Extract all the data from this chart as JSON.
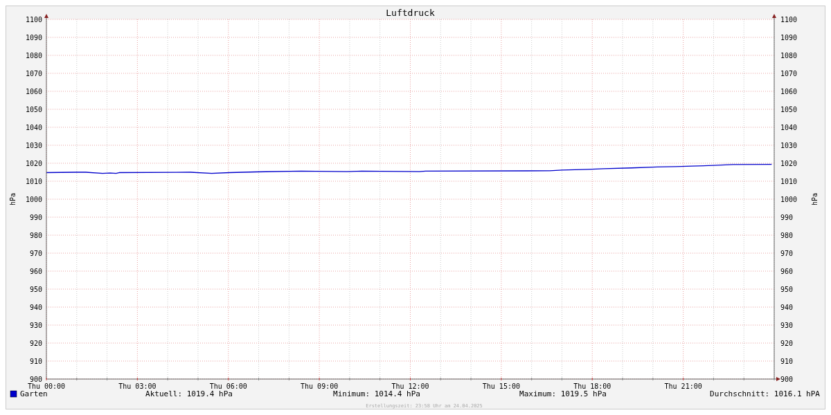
{
  "chart_data": {
    "type": "line",
    "title": "Luftdruck",
    "ylabel": "hPa",
    "y2label": "hPa",
    "xlim": [
      "2025-04-24T00:00",
      "2025-04-25T00:00"
    ],
    "xticks": [
      {
        "value": "2025-04-24T00:00",
        "label": "Thu 00:00"
      },
      {
        "value": "2025-04-24T01:00",
        "label": null
      },
      {
        "value": "2025-04-24T02:00",
        "label": null
      },
      {
        "value": "2025-04-24T03:00",
        "label": "Thu 03:00"
      },
      {
        "value": "2025-04-24T04:00",
        "label": null
      },
      {
        "value": "2025-04-24T05:00",
        "label": null
      },
      {
        "value": "2025-04-24T06:00",
        "label": "Thu 06:00"
      },
      {
        "value": "2025-04-24T07:00",
        "label": null
      },
      {
        "value": "2025-04-24T08:00",
        "label": null
      },
      {
        "value": "2025-04-24T09:00",
        "label": "Thu 09:00"
      },
      {
        "value": "2025-04-24T10:00",
        "label": null
      },
      {
        "value": "2025-04-24T11:00",
        "label": null
      },
      {
        "value": "2025-04-24T12:00",
        "label": "Thu 12:00"
      },
      {
        "value": "2025-04-24T13:00",
        "label": null
      },
      {
        "value": "2025-04-24T14:00",
        "label": null
      },
      {
        "value": "2025-04-24T15:00",
        "label": "Thu 15:00"
      },
      {
        "value": "2025-04-24T16:00",
        "label": null
      },
      {
        "value": "2025-04-24T17:00",
        "label": null
      },
      {
        "value": "2025-04-24T18:00",
        "label": "Thu 18:00"
      },
      {
        "value": "2025-04-24T19:00",
        "label": null
      },
      {
        "value": "2025-04-24T20:00",
        "label": null
      },
      {
        "value": "2025-04-24T21:00",
        "label": "Thu 21:00"
      },
      {
        "value": "2025-04-24T22:00",
        "label": null
      },
      {
        "value": "2025-04-24T23:00",
        "label": null
      },
      {
        "value": "2025-04-25T00:00",
        "label": null
      }
    ],
    "ylim": [
      900,
      1100
    ],
    "yticks": [
      900,
      910,
      920,
      930,
      940,
      950,
      960,
      970,
      980,
      990,
      1000,
      1010,
      1020,
      1030,
      1040,
      1050,
      1060,
      1070,
      1080,
      1090,
      1100
    ],
    "y2lim": [
      900,
      1100
    ],
    "y2ticks": [
      900,
      910,
      920,
      930,
      940,
      950,
      960,
      970,
      980,
      990,
      1000,
      1010,
      1020,
      1030,
      1040,
      1050,
      1060,
      1070,
      1080,
      1090,
      1100
    ],
    "grid": true,
    "legend": "bottom left",
    "line_style": "solid",
    "marker": "none",
    "series": [
      {
        "name": "Garten",
        "color": "#0000cc",
        "x": [
          "2025-04-24T00:00",
          "2025-04-24T01:00",
          "2025-04-24T01:18",
          "2025-04-24T01:51",
          "2025-04-24T02:06",
          "2025-04-24T02:18",
          "2025-04-24T02:24",
          "2025-04-24T04:45",
          "2025-04-24T05:27",
          "2025-04-24T06:03",
          "2025-04-24T06:57",
          "2025-04-24T08:24",
          "2025-04-24T09:54",
          "2025-04-24T10:24",
          "2025-04-24T12:18",
          "2025-04-24T12:30",
          "2025-04-24T16:36",
          "2025-04-24T17:00",
          "2025-04-24T17:51",
          "2025-04-24T18:24",
          "2025-04-24T19:18",
          "2025-04-24T20:09",
          "2025-04-24T20:45",
          "2025-04-24T21:18",
          "2025-04-24T22:00",
          "2025-04-24T22:39",
          "2025-04-24T23:55"
        ],
        "values": [
          1014.8,
          1015.0,
          1015.0,
          1014.4,
          1014.6,
          1014.4,
          1014.8,
          1015.0,
          1014.4,
          1014.8,
          1015.2,
          1015.6,
          1015.3,
          1015.6,
          1015.3,
          1015.6,
          1015.8,
          1016.2,
          1016.6,
          1017.0,
          1017.4,
          1017.9,
          1018.1,
          1018.4,
          1018.8,
          1019.3,
          1019.4
        ]
      }
    ],
    "annotations": [
      "Aktuell: 1019.4 hPa",
      "Minimum: 1014.4 hPa",
      "Maximum: 1019.5 hPa",
      "Durchschnitt: 1016.1 hPA",
      "Erstellungszeit: 23:58 Uhr am 24.04.2025"
    ]
  }
}
